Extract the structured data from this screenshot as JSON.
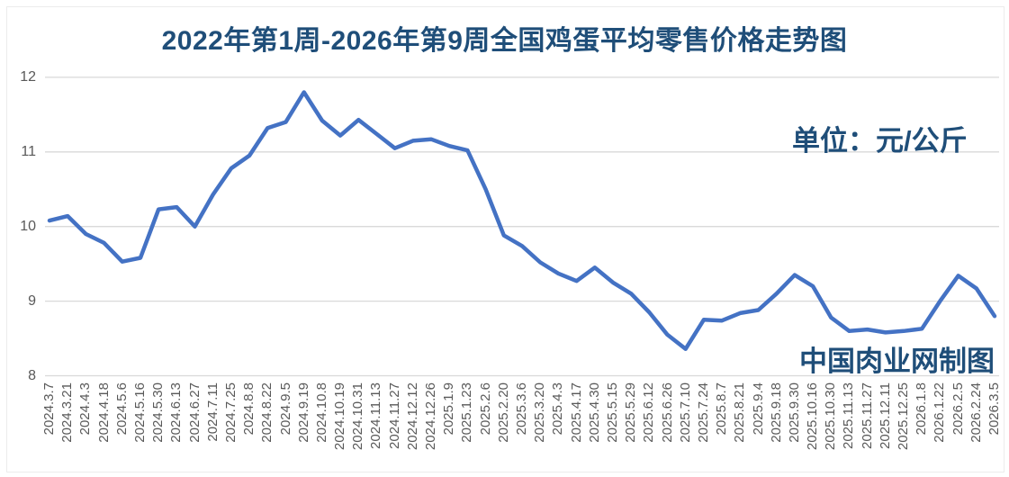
{
  "title": "2022年第1周-2026年第9周全国鸡蛋平均零售价格走势图",
  "unit_label": "单位：元/公斤",
  "watermark": "中国肉业网制图",
  "colors": {
    "line": "#4472C4",
    "heading_text": "#1F4E79",
    "axis_text": "#595959",
    "gridline": "#D9D9D9"
  },
  "chart_data": {
    "type": "line",
    "title": "2022年第1周-2026年第9周全国鸡蛋平均零售价格走势图",
    "ylabel": "元/公斤",
    "xlabel": "",
    "ylim": [
      8,
      12
    ],
    "yticks": [
      12,
      11,
      10,
      9,
      8
    ],
    "grid": true,
    "legend_position": "none",
    "categories": [
      "2024.3.7",
      "2024.3.21",
      "2024.4.3",
      "2024.4.18",
      "2024.5.6",
      "2024.5.16",
      "2024.5.30",
      "2024.6.13",
      "2024.6.27",
      "2024.7.11",
      "2024.7.25",
      "2024.8.8",
      "2024.8.22",
      "2024.9.5",
      "2024.9.19",
      "2024.10.8",
      "2024.10.19",
      "2024.10.31",
      "2024.11.13",
      "2024.11.27",
      "2024.12.12",
      "2024.12.26",
      "2025.1.9",
      "2025.1.23",
      "2025.2.6",
      "2025.2.20",
      "2025.3.6",
      "2025.3.20",
      "2025.4.3",
      "2025.4.17",
      "2025.4.30",
      "2025.5.15",
      "2025.5.29",
      "2025.6.12",
      "2025.6.26",
      "2025.7.10",
      "2025.7.24",
      "2025.8.7",
      "2025.8.21",
      "2025.9.4",
      "2025.9.18",
      "2025.9.30",
      "2025.10.16",
      "2025.10.30",
      "2025.11.13",
      "2025.11.27",
      "2025.12.11",
      "2025.12.25",
      "2026.1.8",
      "2026.1.22",
      "2026.2.5",
      "2026.2.24",
      "2026.3.5"
    ],
    "values": [
      10.08,
      10.14,
      9.9,
      9.78,
      9.53,
      9.58,
      10.23,
      10.26,
      10.0,
      10.43,
      10.78,
      10.95,
      11.32,
      11.4,
      11.8,
      11.42,
      11.22,
      11.43,
      11.24,
      11.05,
      11.15,
      11.17,
      11.08,
      11.02,
      10.5,
      9.88,
      9.74,
      9.52,
      9.37,
      9.27,
      9.45,
      9.25,
      9.1,
      8.85,
      8.55,
      8.36,
      8.75,
      8.74,
      8.84,
      8.88,
      9.1,
      9.35,
      9.2,
      8.78,
      8.6,
      8.62,
      8.58,
      8.6,
      8.63,
      9.0,
      9.34,
      9.17,
      8.8
    ]
  }
}
